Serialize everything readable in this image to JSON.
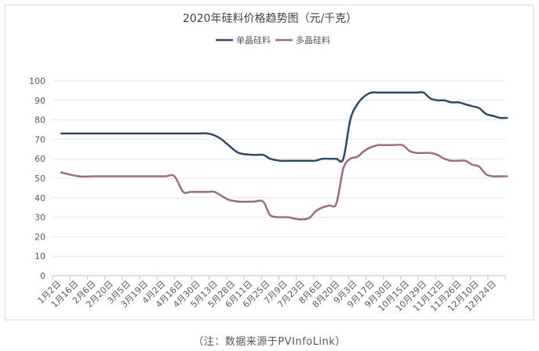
{
  "chart_data": {
    "type": "line",
    "title": "2020年硅料价格趋势图（元/千克）",
    "xlabel": "",
    "ylabel": "",
    "ylim": [
      0,
      100
    ],
    "yticks": [
      0,
      10,
      20,
      30,
      40,
      50,
      60,
      70,
      80,
      90,
      100
    ],
    "grid": true,
    "legend": "top-center",
    "categories": [
      "1月2日",
      "1月16日",
      "2月6日",
      "2月20日",
      "3月5日",
      "3月19日",
      "4月2日",
      "4月16日",
      "4月30日",
      "5月13日",
      "5月28日",
      "6月11日",
      "6月25日",
      "7月9日",
      "7月23日",
      "8月6日",
      "8月20日",
      "9月3日",
      "9月17日",
      "9月30日",
      "10月15日",
      "10月29日",
      "11月12日",
      "11月26日",
      "12月10日",
      "12月24日"
    ],
    "x": [
      0,
      1,
      2,
      2.8,
      3.8,
      4.6,
      5.4,
      6,
      6.5,
      7,
      7.4,
      7.8,
      8.4,
      8.8,
      9.2,
      9.6,
      10.2,
      11,
      11.6,
      12,
      12.6,
      13,
      13.6,
      14,
      14.3,
      14.6,
      15,
      15.4,
      15.8,
      16.2,
      16.6,
      17,
      17.4,
      17.8,
      18.2,
      18.6,
      19,
      19.6,
      20,
      20.4,
      20.8,
      21.2,
      21.6,
      22,
      22.4,
      22.8,
      23.2,
      23.6,
      24,
      24.4,
      24.8,
      25.2,
      25.6
    ],
    "series": [
      {
        "name": "单晶硅料",
        "color": "#2f4a68",
        "values": [
          73,
          73,
          73,
          73,
          73,
          73,
          73,
          73,
          73,
          73,
          73,
          73,
          73,
          72,
          70,
          67,
          63,
          62,
          62,
          60,
          59,
          59,
          59,
          59,
          59,
          59,
          60,
          60,
          60,
          60,
          80,
          88,
          92,
          94,
          94,
          94,
          94,
          94,
          94,
          94,
          94,
          91,
          90,
          90,
          89,
          89,
          88,
          87,
          86,
          83,
          82,
          81,
          81
        ]
      },
      {
        "name": "多晶硅料",
        "color": "#9b6b88",
        "values": [
          53,
          51,
          51,
          51,
          51,
          51,
          51,
          51,
          51,
          43,
          43,
          43,
          43,
          43,
          41,
          39,
          38,
          38,
          38,
          31,
          30,
          30,
          29,
          29,
          30,
          33,
          35,
          36,
          37,
          55,
          60,
          61,
          64,
          66,
          67,
          67,
          67,
          67,
          64,
          63,
          63,
          63,
          62,
          60,
          59,
          59,
          59,
          57,
          56,
          52,
          51,
          51,
          51
        ]
      }
    ],
    "note": "（注：数据来源于PVInfoLink）"
  }
}
